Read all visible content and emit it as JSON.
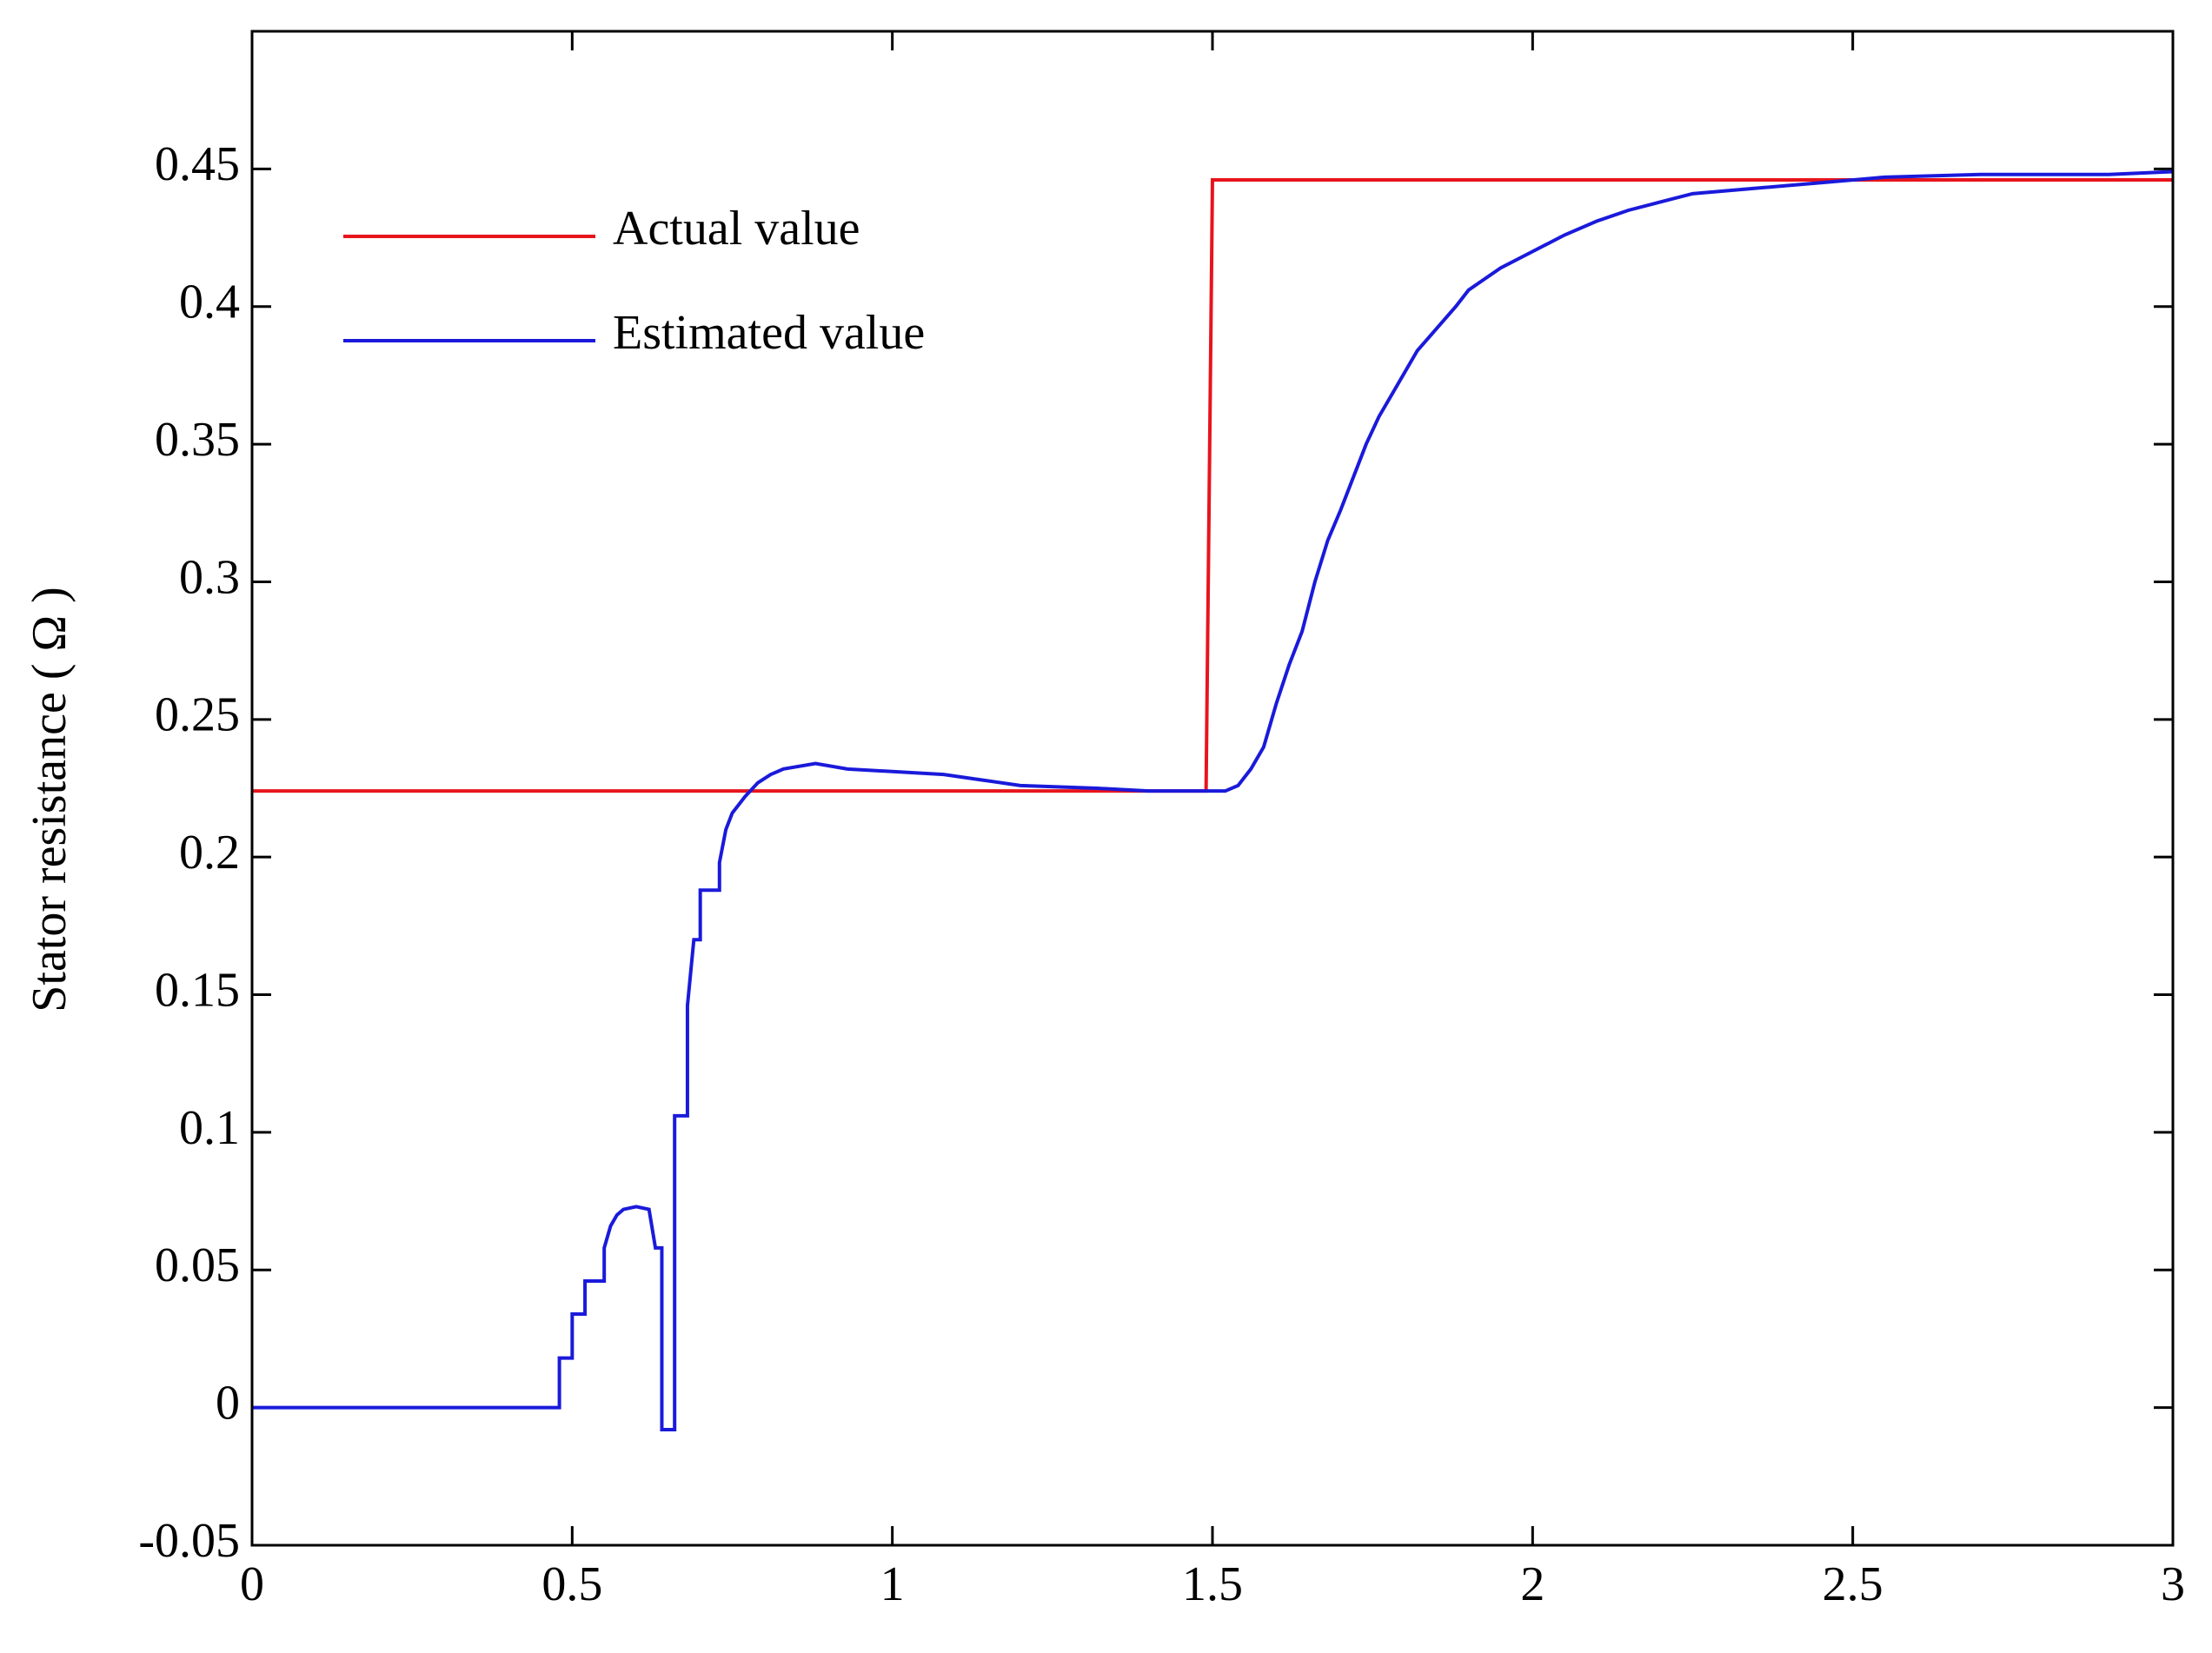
{
  "chart_data": {
    "type": "line",
    "ylabel": "Stator resistance ( Ω )",
    "xlim": [
      0,
      3
    ],
    "xticks": [
      0,
      0.5,
      1,
      1.5,
      2,
      2.5,
      3
    ],
    "ylim": [
      -0.05,
      0.5
    ],
    "yticks": [
      -0.05,
      0,
      0.05,
      0.1,
      0.15,
      0.2,
      0.25,
      0.3,
      0.35,
      0.4,
      0.45
    ],
    "legend": "upper left",
    "series": [
      {
        "name": "Actual value",
        "color": "#e8141c",
        "x": [
          0,
          1.49,
          1.5,
          3
        ],
        "values": [
          0.224,
          0.224,
          0.446,
          0.446
        ]
      },
      {
        "name": "Estimated value",
        "color": "#1a1adb",
        "x": [
          0,
          0.48,
          0.48,
          0.5,
          0.5,
          0.52,
          0.52,
          0.55,
          0.55,
          0.56,
          0.57,
          0.58,
          0.6,
          0.62,
          0.63,
          0.64,
          0.64,
          0.66,
          0.66,
          0.68,
          0.68,
          0.69,
          0.7,
          0.7,
          0.73,
          0.73,
          0.74,
          0.75,
          0.77,
          0.79,
          0.81,
          0.83,
          0.88,
          0.93,
          1.08,
          1.14,
          1.2,
          1.32,
          1.4,
          1.49,
          1.52,
          1.54,
          1.56,
          1.58,
          1.6,
          1.62,
          1.64,
          1.66,
          1.68,
          1.7,
          1.72,
          1.74,
          1.76,
          1.78,
          1.8,
          1.82,
          1.85,
          1.88,
          1.9,
          1.95,
          2.0,
          2.05,
          2.1,
          2.15,
          2.2,
          2.25,
          2.35,
          2.45,
          2.55,
          2.7,
          2.9,
          3.0
        ],
        "values": [
          0,
          0,
          0.018,
          0.018,
          0.034,
          0.034,
          0.046,
          0.046,
          0.058,
          0.066,
          0.07,
          0.072,
          0.073,
          0.072,
          0.058,
          0.058,
          -0.008,
          -0.008,
          0.106,
          0.106,
          0.146,
          0.17,
          0.17,
          0.188,
          0.188,
          0.198,
          0.21,
          0.216,
          0.222,
          0.227,
          0.23,
          0.232,
          0.234,
          0.232,
          0.23,
          0.228,
          0.226,
          0.225,
          0.224,
          0.224,
          0.224,
          0.226,
          0.232,
          0.24,
          0.256,
          0.27,
          0.282,
          0.3,
          0.315,
          0.326,
          0.338,
          0.35,
          0.36,
          0.368,
          0.376,
          0.384,
          0.392,
          0.4,
          0.406,
          0.414,
          0.42,
          0.426,
          0.431,
          0.435,
          0.438,
          0.441,
          0.443,
          0.445,
          0.447,
          0.448,
          0.448,
          0.449
        ]
      }
    ]
  }
}
